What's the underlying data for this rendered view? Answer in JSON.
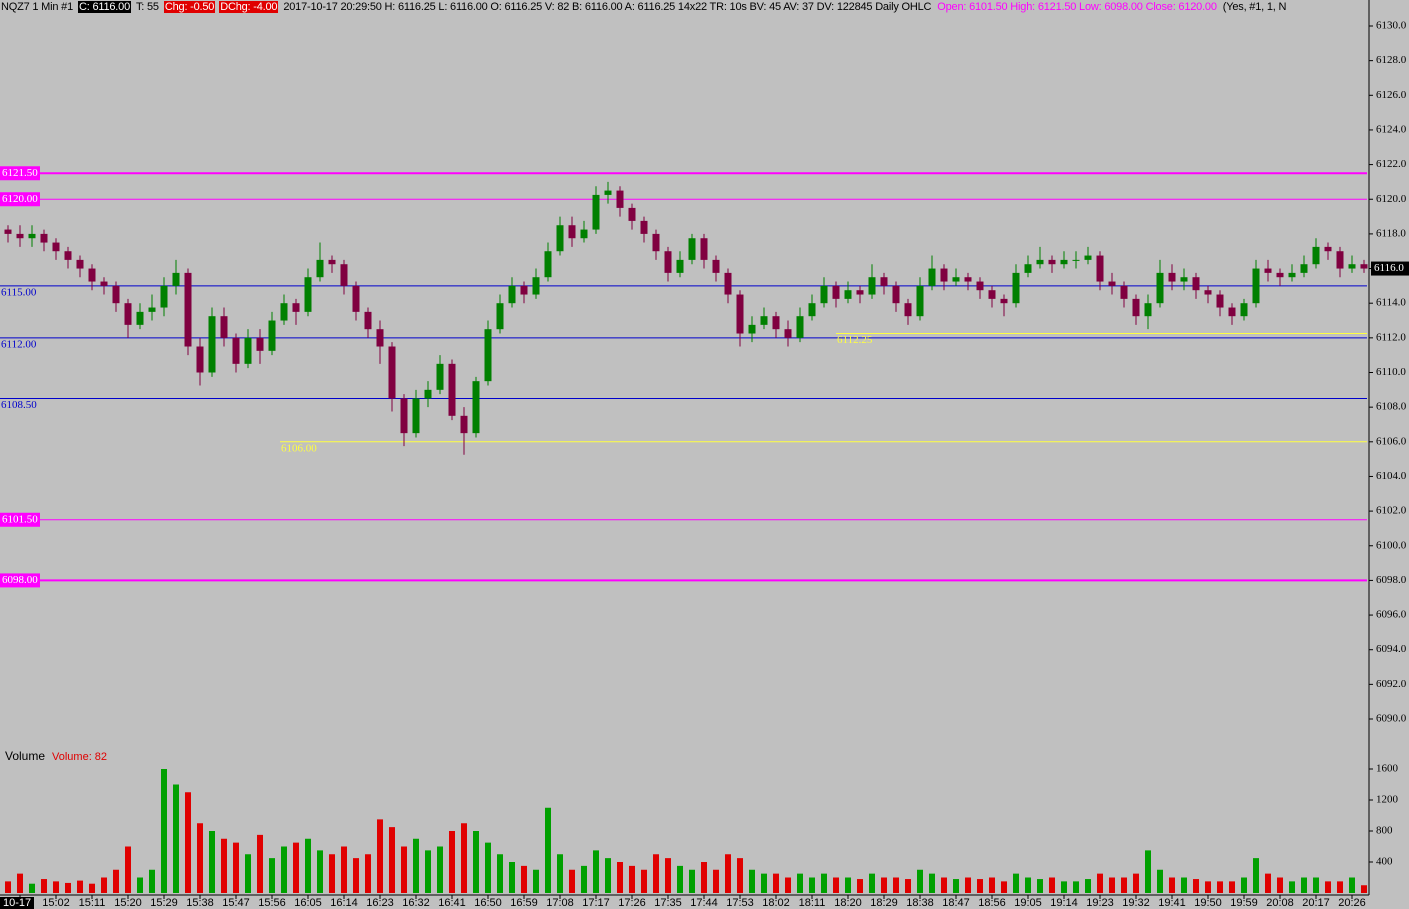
{
  "chart_data": {
    "type": "candlestick",
    "header": [
      "NQZ7  1 Min  #1",
      "C: 6116.00",
      "T: 55",
      "Chg: -0.50",
      "DChg: -4.00",
      "2017-10-17 20:29:50 H: 6116.25 L: 6116.00 O: 6116.25 V: 82 B: 6116.00 A: 6116.25 14x22 TR: 10s BV: 45 AV: 37 DV: 122845  Daily OHLC",
      "Open: 6101.50   High: 6121.50   Low: 6098.00   Close: 6120.00",
      "(Yes, #1, 1, N"
    ],
    "categories": [
      null,
      "10-17",
      null,
      null,
      "15:02",
      null,
      null,
      "15:11",
      null,
      null,
      "15:20",
      null,
      null,
      "15:29",
      null,
      null,
      "15:38",
      null,
      null,
      "15:47",
      null,
      null,
      "15:56",
      null,
      null,
      "16:05",
      null,
      null,
      "16:14",
      null,
      null,
      "16:23",
      null,
      null,
      "16:32",
      null,
      null,
      "16:41",
      null,
      null,
      "16:50",
      null,
      null,
      "16:59",
      null,
      null,
      "17:08",
      null,
      null,
      "17:17",
      null,
      null,
      "17:26",
      null,
      null,
      "17:35",
      null,
      null,
      "17:44",
      null,
      null,
      "17:53",
      null,
      null,
      "18:02",
      null,
      null,
      "18:11",
      null,
      null,
      "18:20",
      null,
      null,
      "18:29",
      null,
      null,
      "18:38",
      null,
      null,
      "18:47",
      null,
      null,
      "18:56",
      null,
      null,
      "19:05",
      null,
      null,
      "19:14",
      null,
      null,
      "19:23",
      null,
      null,
      "19:32",
      null,
      null,
      "19:41",
      null,
      null,
      "19:50",
      null,
      null,
      "19:59",
      null,
      null,
      "20:08",
      null,
      null,
      "20:17",
      null,
      null,
      "20:26",
      null
    ],
    "open": [
      6118.25,
      6118.0,
      6117.75,
      6118.0,
      6117.5,
      6117.0,
      6116.5,
      6116.0,
      6115.25,
      6115.0,
      6114.0,
      6112.75,
      6113.5,
      6113.75,
      6115.0,
      6115.75,
      6111.5,
      6110.0,
      6113.25,
      6112.0,
      6110.5,
      6112.0,
      6111.25,
      6113.0,
      6114.0,
      6113.5,
      6115.5,
      6116.5,
      6116.25,
      6115.0,
      6113.5,
      6112.5,
      6111.5,
      6108.5,
      6106.5,
      6108.5,
      6109.0,
      6110.5,
      6107.5,
      6106.5,
      6109.5,
      6112.5,
      6114.0,
      6115.0,
      6114.5,
      6115.5,
      6117.0,
      6118.5,
      6117.75,
      6118.25,
      6120.25,
      6120.5,
      6119.5,
      6118.75,
      6118.0,
      6117.0,
      6115.75,
      6116.5,
      6117.75,
      6116.5,
      6115.75,
      6114.5,
      6112.25,
      6112.75,
      6113.25,
      6112.5,
      6112.0,
      6113.25,
      6114.0,
      6115.0,
      6114.25,
      6114.75,
      6114.5,
      6115.5,
      6115.0,
      6114.0,
      6113.25,
      6115.0,
      6116.0,
      6115.25,
      6115.5,
      6115.25,
      6114.75,
      6114.25,
      6114.0,
      6115.75,
      6116.25,
      6116.5,
      6116.25,
      6116.5,
      6116.5,
      6116.75,
      6115.25,
      6115.0,
      6114.25,
      6113.25,
      6114.0,
      6115.75,
      6115.25,
      6115.5,
      6114.75,
      6114.5,
      6113.75,
      6113.25,
      6114.0,
      6116.0,
      6115.75,
      6115.5,
      6115.75,
      6116.25,
      6117.25,
      6117.0,
      6116.0,
      6116.25
    ],
    "high": [
      6118.5,
      6118.5,
      6118.5,
      6118.25,
      6117.75,
      6117.25,
      6116.75,
      6116.25,
      6115.5,
      6115.25,
      6114.25,
      6114.0,
      6114.5,
      6115.5,
      6116.5,
      6116.0,
      6112.0,
      6113.75,
      6113.75,
      6112.25,
      6112.5,
      6112.5,
      6113.5,
      6114.5,
      6114.25,
      6116.0,
      6117.5,
      6116.75,
      6116.5,
      6115.25,
      6113.75,
      6113.0,
      6111.75,
      6108.75,
      6109.0,
      6109.5,
      6111.0,
      6110.75,
      6108.0,
      6109.75,
      6113.0,
      6114.5,
      6115.5,
      6115.25,
      6116.0,
      6117.5,
      6119.0,
      6119.0,
      6118.75,
      6120.75,
      6121.0,
      6120.75,
      6119.75,
      6119.0,
      6118.25,
      6117.25,
      6117.0,
      6118.0,
      6118.0,
      6116.75,
      6116.0,
      6114.75,
      6113.25,
      6113.75,
      6113.5,
      6113.0,
      6113.75,
      6114.5,
      6115.5,
      6115.25,
      6115.25,
      6115.0,
      6116.25,
      6115.75,
      6115.25,
      6114.25,
      6115.5,
      6116.75,
      6116.25,
      6116.0,
      6115.75,
      6115.5,
      6115.0,
      6114.5,
      6116.25,
      6116.75,
      6117.25,
      6116.75,
      6117.0,
      6117.0,
      6117.25,
      6117.0,
      6115.75,
      6115.25,
      6114.5,
      6114.5,
      6116.5,
      6116.25,
      6116.0,
      6115.75,
      6115.0,
      6114.75,
      6114.0,
      6114.25,
      6116.5,
      6116.5,
      6116.0,
      6116.25,
      6116.75,
      6117.75,
      6117.5,
      6117.25,
      6116.75,
      6116.5
    ],
    "low": [
      6117.5,
      6117.25,
      6117.25,
      6117.0,
      6116.5,
      6116.0,
      6115.5,
      6114.75,
      6114.5,
      6113.5,
      6112.0,
      6112.5,
      6113.0,
      6113.25,
      6114.5,
      6111.0,
      6109.25,
      6109.75,
      6111.5,
      6110.0,
      6110.25,
      6110.5,
      6111.0,
      6112.75,
      6112.75,
      6113.25,
      6115.25,
      6115.75,
      6114.5,
      6113.0,
      6112.0,
      6110.5,
      6107.75,
      6105.75,
      6106.25,
      6108.0,
      6108.75,
      6107.25,
      6105.25,
      6106.25,
      6109.25,
      6112.25,
      6113.75,
      6114.0,
      6114.25,
      6115.25,
      6116.75,
      6117.25,
      6117.5,
      6118.0,
      6119.75,
      6119.0,
      6118.25,
      6117.5,
      6116.5,
      6115.25,
      6115.5,
      6116.25,
      6116.0,
      6115.25,
      6114.0,
      6111.5,
      6111.75,
      6112.5,
      6112.0,
      6111.5,
      6111.75,
      6113.0,
      6113.75,
      6113.75,
      6114.0,
      6114.0,
      6114.25,
      6114.5,
      6113.5,
      6112.75,
      6113.0,
      6114.75,
      6114.75,
      6115.0,
      6114.75,
      6114.25,
      6113.75,
      6113.25,
      6113.75,
      6115.5,
      6116.0,
      6115.75,
      6116.0,
      6116.0,
      6116.25,
      6114.75,
      6114.5,
      6113.75,
      6112.75,
      6112.5,
      6113.75,
      6114.75,
      6114.75,
      6114.25,
      6114.0,
      6113.25,
      6112.75,
      6113.0,
      6113.75,
      6115.25,
      6115.0,
      6115.25,
      6115.5,
      6116.0,
      6116.5,
      6115.5,
      6115.75,
      6115.75
    ],
    "close": [
      6118.0,
      6117.75,
      6118.0,
      6117.5,
      6117.0,
      6116.5,
      6116.0,
      6115.25,
      6115.0,
      6114.0,
      6112.75,
      6113.5,
      6113.75,
      6115.0,
      6115.75,
      6111.5,
      6110.0,
      6113.25,
      6112.0,
      6110.5,
      6112.0,
      6111.25,
      6113.0,
      6114.0,
      6113.5,
      6115.5,
      6116.5,
      6116.25,
      6115.0,
      6113.5,
      6112.5,
      6111.5,
      6108.5,
      6106.5,
      6108.5,
      6109.0,
      6110.5,
      6107.5,
      6106.5,
      6109.5,
      6112.5,
      6114.0,
      6115.0,
      6114.5,
      6115.5,
      6117.0,
      6118.5,
      6117.75,
      6118.25,
      6120.25,
      6120.5,
      6119.5,
      6118.75,
      6118.0,
      6117.0,
      6115.75,
      6116.5,
      6117.75,
      6116.5,
      6115.75,
      6114.5,
      6112.25,
      6112.75,
      6113.25,
      6112.5,
      6112.0,
      6113.25,
      6114.0,
      6115.0,
      6114.25,
      6114.75,
      6114.5,
      6115.5,
      6115.0,
      6114.0,
      6113.25,
      6115.0,
      6116.0,
      6115.25,
      6115.5,
      6115.25,
      6114.75,
      6114.25,
      6114.0,
      6115.75,
      6116.25,
      6116.5,
      6116.25,
      6116.5,
      6116.5,
      6116.75,
      6115.25,
      6115.0,
      6114.25,
      6113.25,
      6114.0,
      6115.75,
      6115.25,
      6115.5,
      6114.75,
      6114.5,
      6113.75,
      6113.25,
      6114.0,
      6116.0,
      6115.75,
      6115.5,
      6115.75,
      6116.25,
      6117.25,
      6117.0,
      6116.0,
      6116.25,
      6116.0
    ],
    "volume": [
      150,
      250,
      120,
      180,
      150,
      130,
      160,
      120,
      200,
      300,
      600,
      200,
      300,
      1600,
      1400,
      1300,
      900,
      800,
      700,
      650,
      500,
      750,
      450,
      600,
      650,
      700,
      550,
      500,
      600,
      450,
      500,
      950,
      850,
      600,
      700,
      550,
      600,
      800,
      900,
      800,
      650,
      500,
      400,
      350,
      300,
      1100,
      500,
      300,
      350,
      550,
      450,
      400,
      350,
      300,
      500,
      450,
      350,
      300,
      400,
      300,
      500,
      450,
      300,
      250,
      250,
      200,
      250,
      200,
      250,
      200,
      200,
      180,
      250,
      200,
      200,
      180,
      300,
      250,
      200,
      180,
      200,
      180,
      200,
      150,
      250,
      200,
      180,
      200,
      150,
      150,
      180,
      250,
      200,
      200,
      250,
      550,
      300,
      200,
      200,
      180,
      150,
      150,
      150,
      200,
      450,
      250,
      200,
      150,
      200,
      200,
      150,
      150,
      200,
      100
    ],
    "up_color": "#008000",
    "down_color": "#800040",
    "volume_up_color": "#00a000",
    "volume_down_color": "#e00000",
    "ylim": [
      6088.5,
      6131.5
    ],
    "yticks": [
      {
        "value": 6090,
        "label": "6090.0"
      },
      {
        "value": 6092,
        "label": "6092.0"
      },
      {
        "value": 6094,
        "label": "6094.0"
      },
      {
        "value": 6096,
        "label": "6096.0"
      },
      {
        "value": 6098,
        "label": "6098.0"
      },
      {
        "value": 6100,
        "label": "6100.0"
      },
      {
        "value": 6102,
        "label": "6102.0"
      },
      {
        "value": 6104,
        "label": "6104.0"
      },
      {
        "value": 6106,
        "label": "6106.0"
      },
      {
        "value": 6108,
        "label": "6108.0"
      },
      {
        "value": 6110,
        "label": "6110.0"
      },
      {
        "value": 6112,
        "label": "6112.0"
      },
      {
        "value": 6114,
        "label": "6114.0"
      },
      {
        "value": 6116,
        "label": "6116.0"
      },
      {
        "value": 6118,
        "label": "6118.0"
      },
      {
        "value": 6120,
        "label": "6120.0"
      },
      {
        "value": 6122,
        "label": "6122.0"
      },
      {
        "value": 6124,
        "label": "6124.0"
      },
      {
        "value": 6126,
        "label": "6126.0"
      },
      {
        "value": 6128,
        "label": "6128.0"
      },
      {
        "value": 6130,
        "label": "6130.0"
      }
    ],
    "last_price": {
      "value": 6116,
      "label": "6116.0"
    },
    "levels": [
      {
        "value": 6121.5,
        "label": "6121.50",
        "color": "#ff00ff",
        "style": "box",
        "width": 2
      },
      {
        "value": 6120,
        "label": "6120.00",
        "color": "#ff00ff",
        "style": "box",
        "width": 1
      },
      {
        "value": 6115,
        "label": "6115.00",
        "color": "#0000cc",
        "style": "text",
        "width": 1
      },
      {
        "value": 6112,
        "label": "6112.00",
        "color": "#0000cc",
        "style": "text",
        "width": 1
      },
      {
        "value": 6108.5,
        "label": "6108.50",
        "color": "#0000cc",
        "style": "text",
        "width": 1
      },
      {
        "value": 6106,
        "label": "6106.00",
        "color": "#ffff40",
        "style": "text",
        "width": 1
      },
      {
        "value": 6112.25,
        "label": "6112.25",
        "color": "#ffff40",
        "style": "text",
        "width": 1
      },
      {
        "value": 6101.5,
        "label": "6101.50",
        "color": "#ff00ff",
        "style": "box",
        "width": 1
      },
      {
        "value": 6098,
        "label": "6098.00",
        "color": "#ff00ff",
        "style": "box",
        "width": 2
      }
    ],
    "volume_title": "Volume",
    "volume_label": "Volume: 82",
    "vlim": [
      0,
      1800
    ],
    "vticks": [
      400,
      800,
      1200,
      1600
    ]
  }
}
